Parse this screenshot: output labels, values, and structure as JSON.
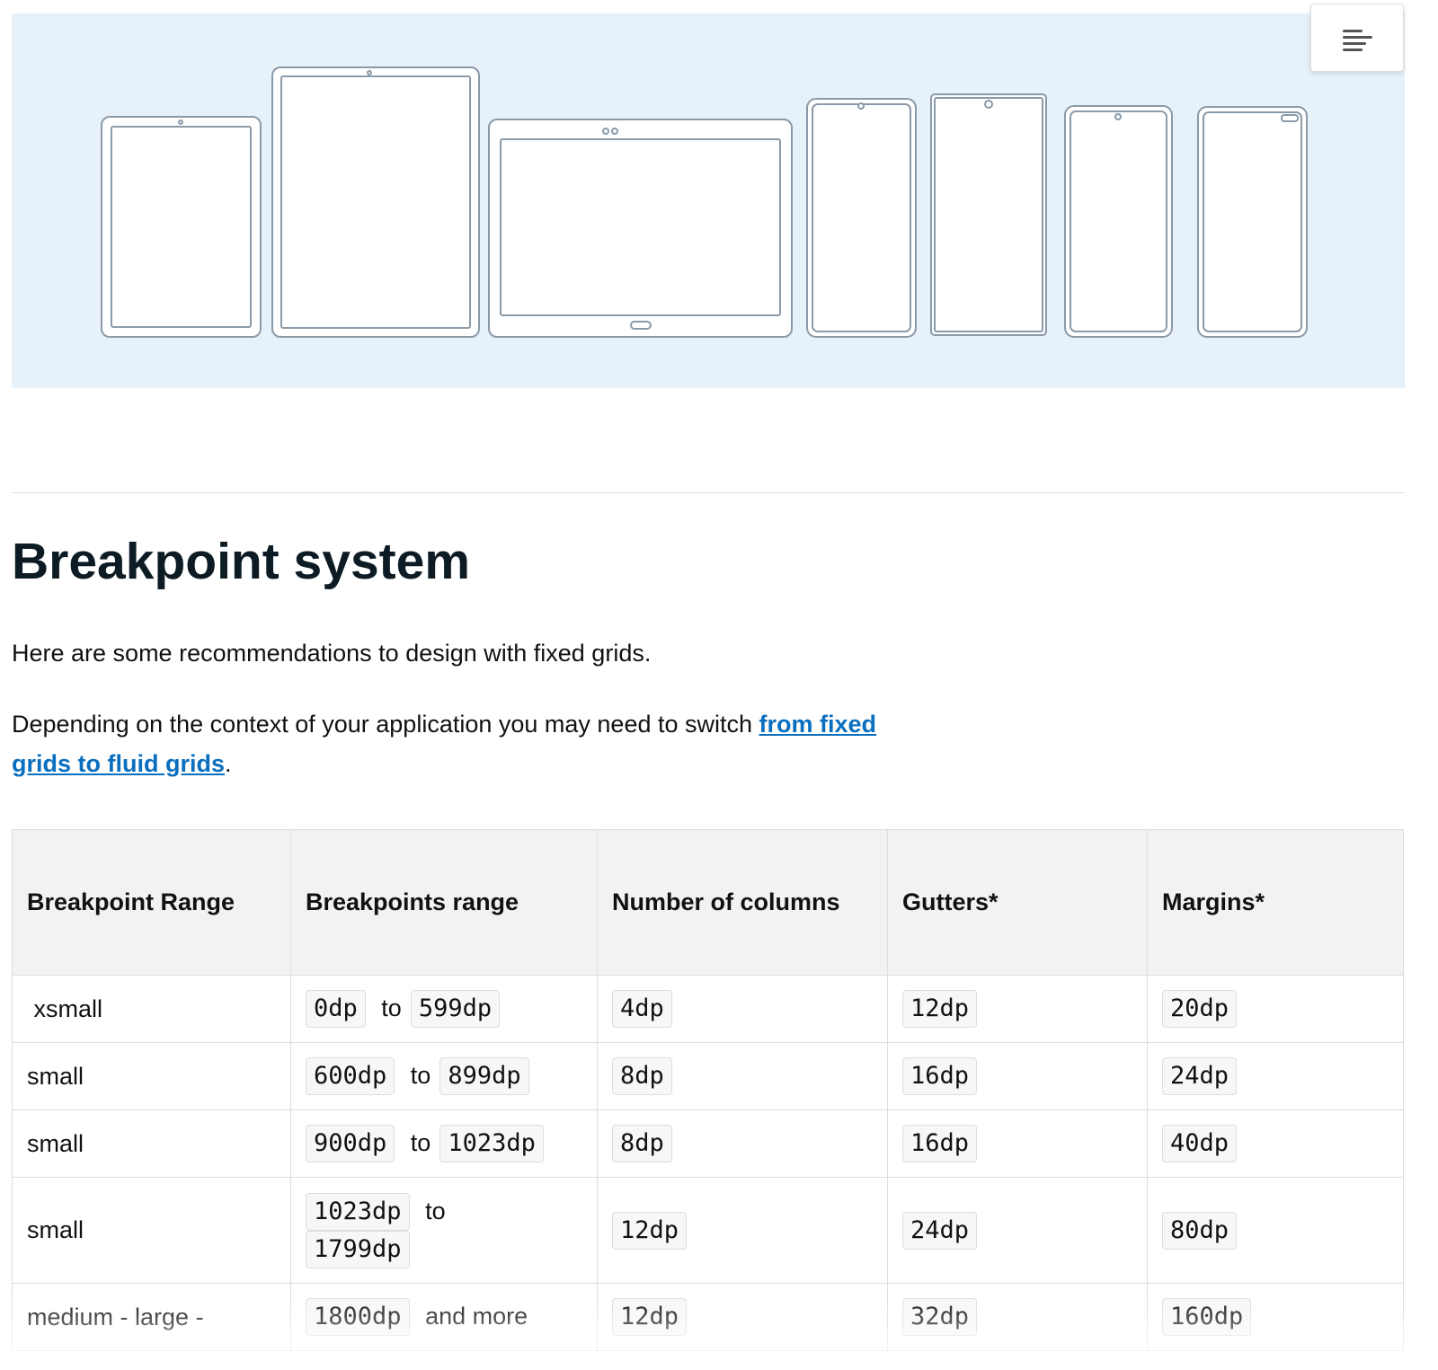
{
  "hero": {
    "background_color": "#e7f1f9",
    "image": "device-lineup-illustration"
  },
  "menu_button": {
    "icon": "table-of-contents-icon"
  },
  "heading": "Breakpoint system",
  "intro": "Here are some recommendations to design with fixed grids.",
  "context": {
    "text": "Depending on the context of your application you may need to switch ",
    "link": "from fixed grids to fluid grids",
    "end": "."
  },
  "link_color": "#0a6fbf",
  "table": {
    "headers": [
      "Breakpoint Range",
      "Breakpoints range",
      "Number of columns",
      "Gutters*",
      "Margins*"
    ],
    "rows": [
      {
        "name": " xsmall",
        "from": "0dp",
        "sep": "to",
        "to": "599dp",
        "columns": "4dp",
        "gutters": "12dp",
        "margins": "20dp"
      },
      {
        "name": "small",
        "from": "600dp",
        "sep": "to",
        "to": "899dp",
        "columns": "8dp",
        "gutters": "16dp",
        "margins": "24dp"
      },
      {
        "name": "small",
        "from": "900dp",
        "sep": "to",
        "to": "1023dp",
        "columns": "8dp",
        "gutters": "16dp",
        "margins": "40dp"
      },
      {
        "name": "small",
        "from": "1023dp",
        "sep": "to",
        "to": "1799dp",
        "columns": "12dp",
        "gutters": "24dp",
        "margins": "80dp"
      },
      {
        "name": "medium - large -",
        "from": "1800dp",
        "sep": "and more",
        "to": "",
        "columns": "12dp",
        "gutters": "32dp",
        "margins": "160dp"
      }
    ]
  }
}
